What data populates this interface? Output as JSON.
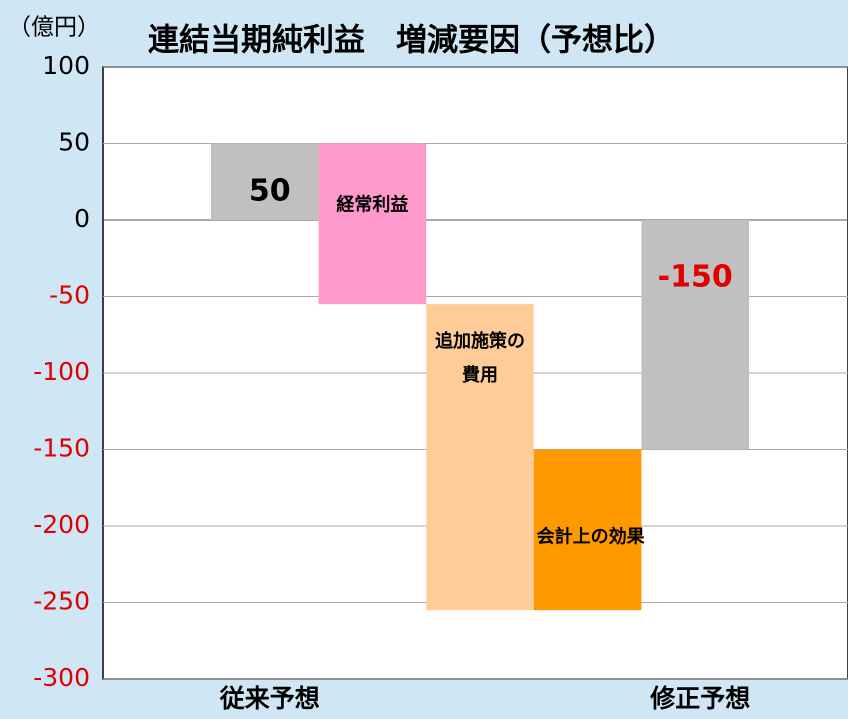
{
  "chart_data": {
    "type": "waterfall",
    "unit_label": "（億円）",
    "title": "連結当期純利益　増減要因（予想比）",
    "categories": [
      "従来予想",
      null,
      null,
      null,
      "修正予想"
    ],
    "measure": [
      "total",
      "delta",
      "delta",
      "delta",
      "total"
    ],
    "values": [
      50,
      -105,
      -200,
      105,
      -150
    ],
    "colors": [
      "#c0c0c0",
      "#ff99cc",
      "#ffcc99",
      "#ff9900",
      "#c0c0c0"
    ],
    "bar_labels": [
      null,
      [
        "経常利益"
      ],
      [
        "追加施策の",
        "費用"
      ],
      [
        "会計上の効果"
      ],
      null
    ],
    "show_value": [
      true,
      false,
      false,
      false,
      true
    ],
    "value_label_colors": [
      "#000000",
      null,
      null,
      null,
      "#e00000"
    ],
    "ylim": [
      -300,
      100
    ],
    "yticks": [
      100,
      50,
      0,
      -50,
      -100,
      -150,
      -200,
      -250,
      -300
    ],
    "negative_tick_color": "#e00000",
    "grid": true
  }
}
